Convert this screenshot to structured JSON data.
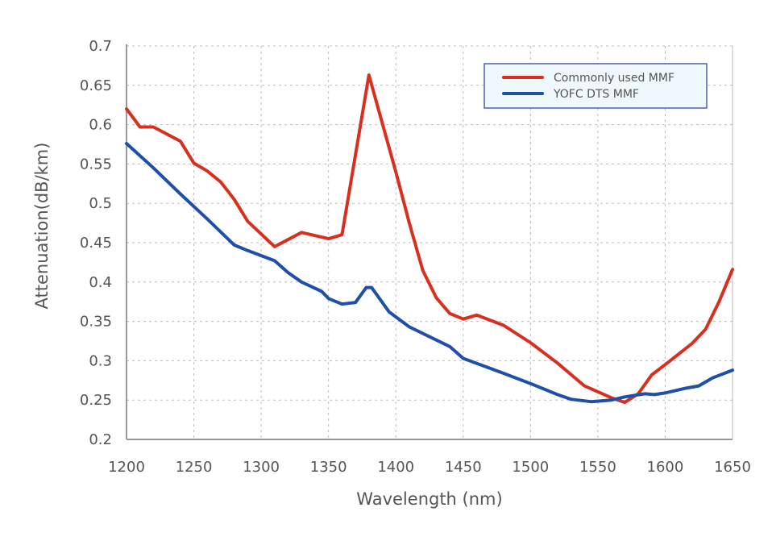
{
  "chart_data": {
    "type": "line",
    "title": "",
    "xlabel": "Wavelength (nm)",
    "ylabel": "Attenuation(dB/km)",
    "xlim": [
      1200,
      1650
    ],
    "ylim": [
      0.2,
      0.7
    ],
    "xticks": [
      "1200",
      "1250",
      "1300",
      "1350",
      "1400",
      "1450",
      "1500",
      "1550",
      "1600",
      "1650"
    ],
    "yticks": [
      "0.2",
      "0.25",
      "0.3",
      "0.35",
      "0.4",
      "0.45",
      "0.5",
      "0.55",
      "0.6",
      "0.65",
      "0.7"
    ],
    "grid": true,
    "legend_position": "top-right",
    "series": [
      {
        "name": "Commonly used MMF",
        "color": "#d7301f",
        "x": [
          1200,
          1210,
          1220,
          1240,
          1250,
          1260,
          1270,
          1280,
          1290,
          1310,
          1330,
          1350,
          1360,
          1380,
          1400,
          1410,
          1420,
          1430,
          1440,
          1450,
          1460,
          1480,
          1500,
          1520,
          1540,
          1560,
          1570,
          1580,
          1590,
          1600,
          1620,
          1630,
          1640,
          1650
        ],
        "y": [
          0.62,
          0.597,
          0.597,
          0.579,
          0.551,
          0.541,
          0.527,
          0.505,
          0.477,
          0.445,
          0.463,
          0.455,
          0.46,
          0.663,
          0.54,
          0.475,
          0.415,
          0.38,
          0.36,
          0.353,
          0.358,
          0.345,
          0.323,
          0.297,
          0.268,
          0.253,
          0.247,
          0.258,
          0.282,
          0.295,
          0.322,
          0.34,
          0.375,
          0.416
        ]
      },
      {
        "name": "YOFC DTS MMF",
        "color": "#1f4fa8",
        "x": [
          1200,
          1220,
          1240,
          1260,
          1280,
          1290,
          1310,
          1320,
          1330,
          1345,
          1350,
          1360,
          1370,
          1378,
          1382,
          1395,
          1410,
          1440,
          1450,
          1480,
          1500,
          1520,
          1530,
          1545,
          1560,
          1570,
          1585,
          1592,
          1600,
          1615,
          1625,
          1635,
          1650
        ],
        "y": [
          0.576,
          0.545,
          0.512,
          0.48,
          0.447,
          0.44,
          0.427,
          0.412,
          0.4,
          0.388,
          0.379,
          0.372,
          0.374,
          0.393,
          0.393,
          0.362,
          0.343,
          0.318,
          0.303,
          0.284,
          0.271,
          0.257,
          0.251,
          0.248,
          0.25,
          0.254,
          0.258,
          0.257,
          0.259,
          0.265,
          0.268,
          0.278,
          0.288
        ]
      }
    ]
  }
}
